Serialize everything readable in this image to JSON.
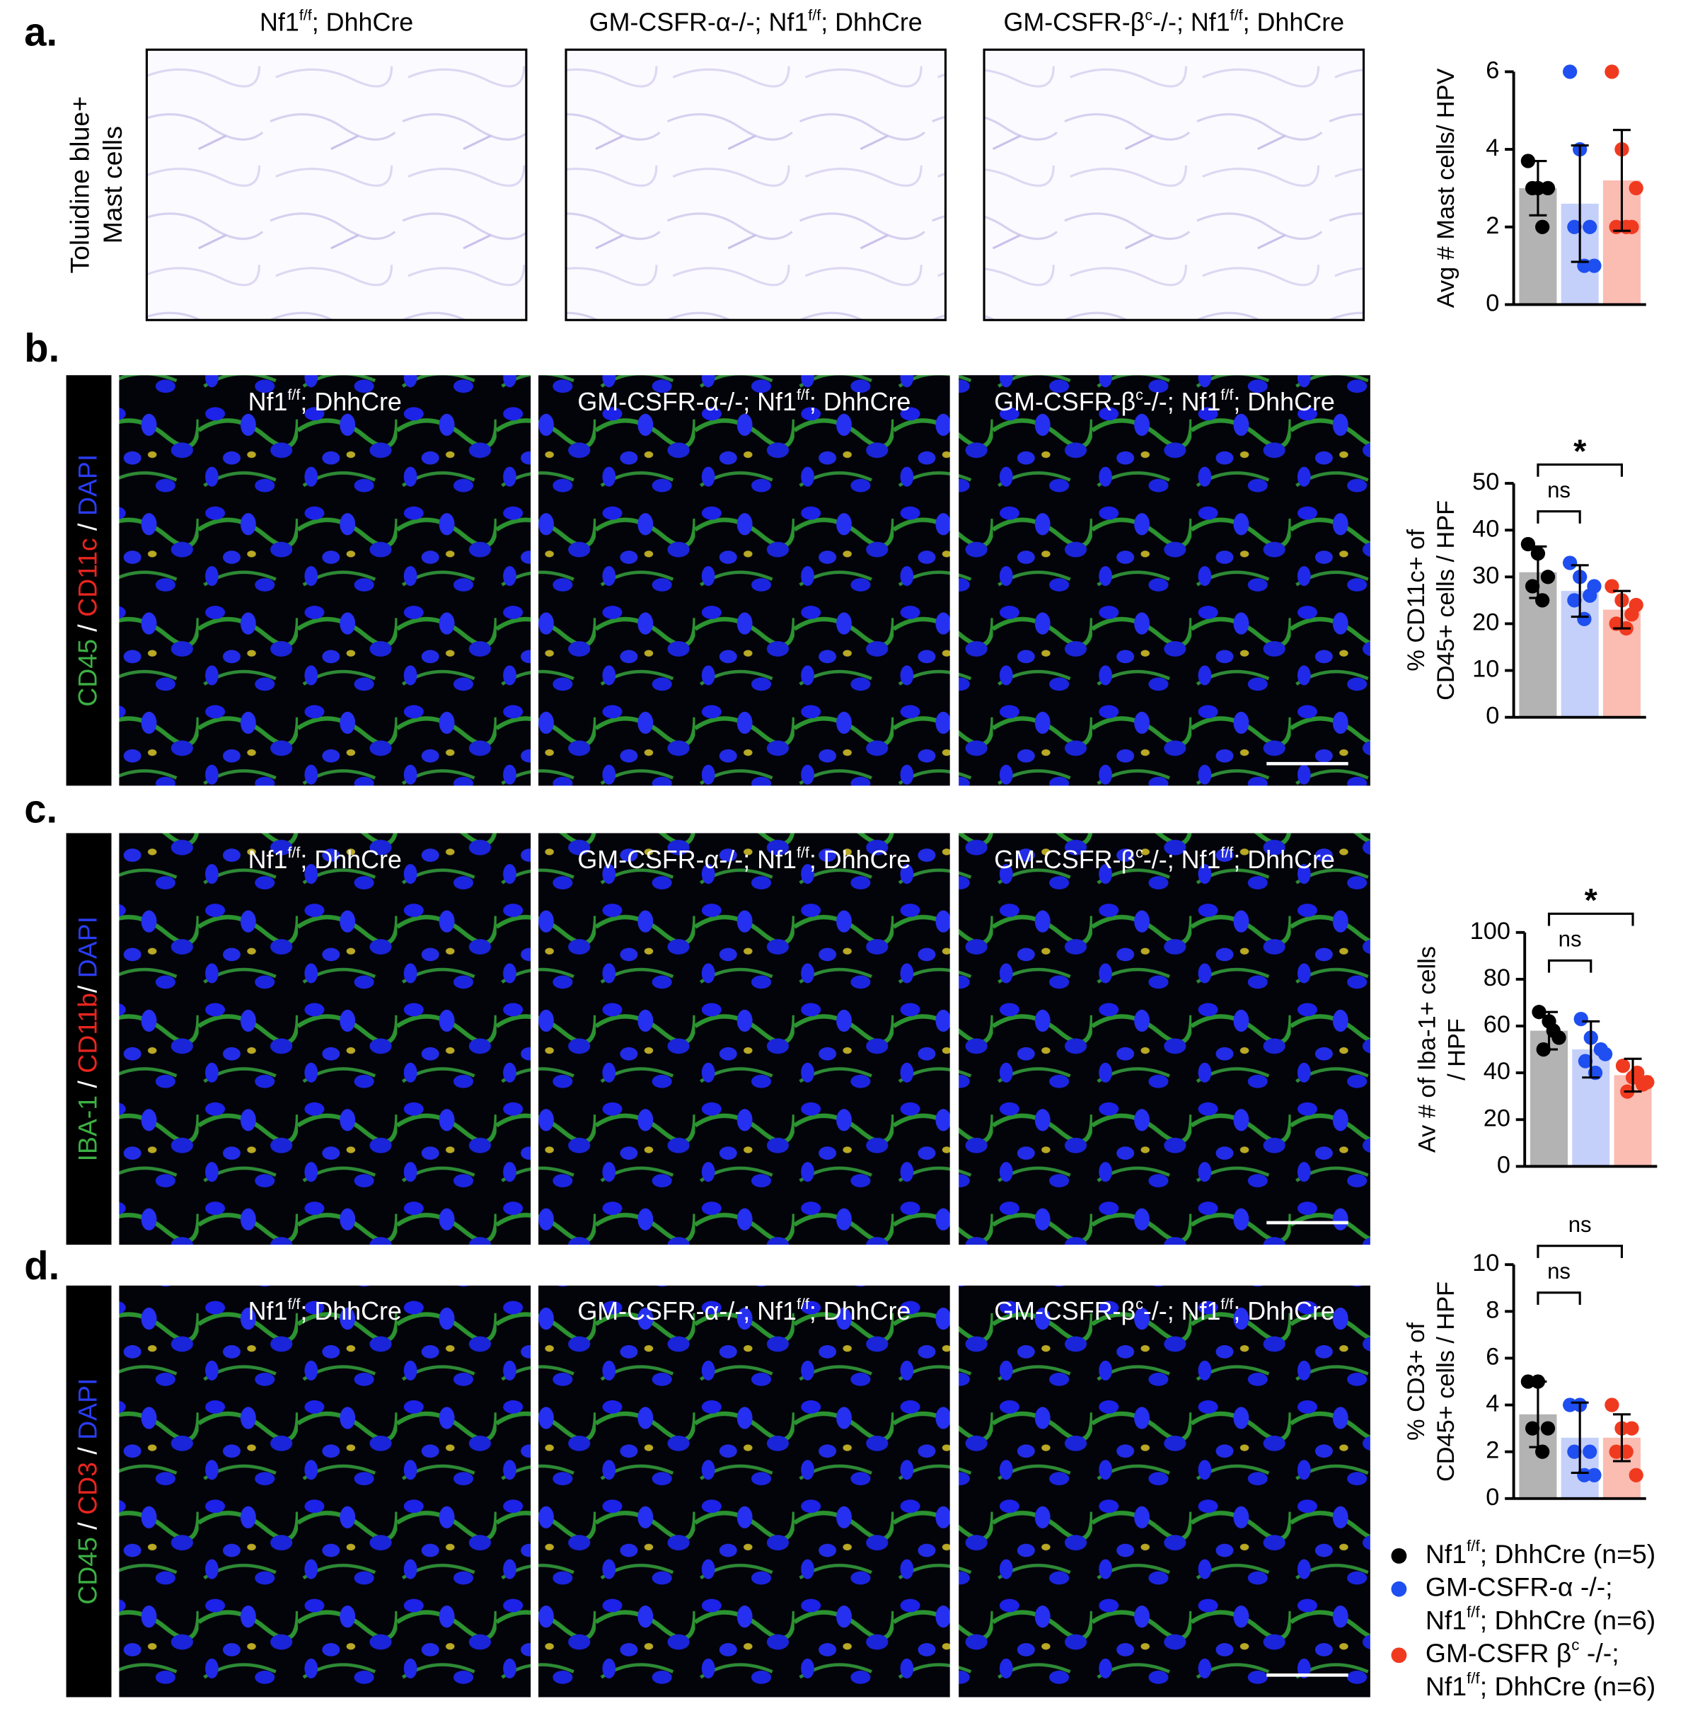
{
  "panels": [
    {
      "label": "a.",
      "style": "brightfield",
      "stain": [
        [
          {
            "text": "Toluidine blue+",
            "color": "#000000"
          }
        ],
        [
          {
            "text": "Mast cells",
            "color": "#000000"
          }
        ]
      ],
      "image_titles": [
        [
          "Nf1",
          "f/f",
          "; DhhCre"
        ],
        [
          "GM-CSFR-α-/-; Nf1",
          "f/f",
          "; DhhCre"
        ],
        [
          "GM-CSFR-β",
          "c",
          "-/-; Nf1",
          "f/f",
          "; DhhCre"
        ]
      ]
    },
    {
      "label": "b.",
      "style": "fluorescence",
      "stain": [
        [
          {
            "text": "CD45",
            "color": "#3cb043"
          },
          {
            "text": " / ",
            "color": "#ffffff"
          },
          {
            "text": "CD11c",
            "color": "#e8251f"
          },
          {
            "text": " / ",
            "color": "#ffffff"
          },
          {
            "text": "DAPI",
            "color": "#2a3cf0"
          }
        ]
      ],
      "image_titles": [
        [
          "Nf1",
          "f/f",
          "; DhhCre"
        ],
        [
          "GM-CSFR-α-/-; Nf1",
          "f/f",
          "; DhhCre"
        ],
        [
          "GM-CSFR-β",
          "c",
          "-/-; Nf1",
          "f/f",
          "; DhhCre"
        ]
      ]
    },
    {
      "label": "c.",
      "style": "fluorescence",
      "stain": [
        [
          {
            "text": "IBA-1",
            "color": "#3cb043"
          },
          {
            "text": " / ",
            "color": "#ffffff"
          },
          {
            "text": "CD11b",
            "color": "#e8251f"
          },
          {
            "text": "/ ",
            "color": "#ffffff"
          },
          {
            "text": "DAPI",
            "color": "#2a3cf0"
          }
        ]
      ],
      "image_titles": [
        [
          "Nf1",
          "f/f",
          "; DhhCre"
        ],
        [
          "GM-CSFR-α-/-; Nf1",
          "f/f",
          "; DhhCre"
        ],
        [
          "GM-CSFR-β",
          "c",
          "-/-; Nf1",
          "f/f",
          "; DhhCre"
        ]
      ]
    },
    {
      "label": "d.",
      "style": "fluorescence",
      "stain": [
        [
          {
            "text": "CD45",
            "color": "#3cb043"
          },
          {
            "text": " / ",
            "color": "#ffffff"
          },
          {
            "text": "CD3",
            "color": "#e8251f"
          },
          {
            "text": " / ",
            "color": "#ffffff"
          },
          {
            "text": "DAPI",
            "color": "#2a3cf0"
          }
        ]
      ],
      "image_titles": [
        [
          "Nf1",
          "f/f",
          "; DhhCre"
        ],
        [
          "GM-CSFR-α-/-; Nf1",
          "f/f",
          "; DhhCre"
        ],
        [
          "GM-CSFR-β",
          "c",
          "-/-; Nf1",
          "f/f",
          "; DhhCre"
        ]
      ]
    }
  ],
  "chart_data": [
    {
      "type": "bar",
      "ylabel": [
        "Avg # Mast cells/ HPV"
      ],
      "ylim": [
        0,
        6
      ],
      "yticks": [
        0,
        2,
        4,
        6
      ],
      "values": [
        3.0,
        2.6,
        3.2
      ],
      "errors": [
        0.7,
        1.5,
        1.3
      ],
      "colors": [
        "#b3b3b3",
        "#c4d0fa",
        "#fbbcb2"
      ],
      "point_colors": [
        "#000000",
        "#1f4ff0",
        "#f03a1f"
      ],
      "points": [
        [
          3.7,
          3,
          3,
          3,
          2
        ],
        [
          6,
          4,
          2,
          2,
          1,
          1
        ],
        [
          6,
          4,
          2,
          2,
          2,
          3
        ]
      ],
      "annotations": []
    },
    {
      "type": "bar",
      "ylabel": [
        "% CD11c+ of",
        "CD45+ cells / HPF"
      ],
      "ylim": [
        0,
        50
      ],
      "yticks": [
        0,
        10,
        20,
        30,
        40,
        50
      ],
      "values": [
        31,
        27,
        23
      ],
      "errors": [
        5.5,
        5.5,
        4
      ],
      "colors": [
        "#b3b3b3",
        "#c4d0fa",
        "#fbbcb2"
      ],
      "point_colors": [
        "#000000",
        "#1f4ff0",
        "#f03a1f"
      ],
      "points": [
        [
          37,
          35,
          30,
          28,
          25
        ],
        [
          33,
          30,
          26,
          25,
          21,
          28
        ],
        [
          28,
          25,
          22,
          20,
          19,
          24
        ]
      ],
      "annotations": [
        {
          "text": "ns",
          "between": [
            0,
            1
          ]
        },
        {
          "text": "*",
          "between": [
            0,
            2
          ]
        }
      ]
    },
    {
      "type": "bar",
      "ylabel": [
        "Av # of Iba-1+ cells",
        "/ HPF"
      ],
      "ylim": [
        0,
        100
      ],
      "yticks": [
        0,
        20,
        40,
        60,
        80,
        100
      ],
      "values": [
        58,
        50,
        39
      ],
      "errors": [
        8,
        12,
        7
      ],
      "colors": [
        "#b3b3b3",
        "#c4d0fa",
        "#fbbcb2"
      ],
      "point_colors": [
        "#000000",
        "#1f4ff0",
        "#f03a1f"
      ],
      "points": [
        [
          66,
          62,
          55,
          50,
          58
        ],
        [
          63,
          55,
          50,
          45,
          40,
          48
        ],
        [
          43,
          38,
          35,
          32,
          40,
          36
        ]
      ],
      "annotations": [
        {
          "text": "ns",
          "between": [
            0,
            1
          ]
        },
        {
          "text": "*",
          "between": [
            0,
            2
          ]
        }
      ]
    },
    {
      "type": "bar",
      "ylabel": [
        "% CD3+ of",
        "CD45+ cells / HPF"
      ],
      "ylim": [
        0,
        10
      ],
      "yticks": [
        0,
        2,
        4,
        6,
        8,
        10
      ],
      "values": [
        3.6,
        2.6,
        2.6
      ],
      "errors": [
        1.4,
        1.5,
        1.0
      ],
      "colors": [
        "#b3b3b3",
        "#c4d0fa",
        "#fbbcb2"
      ],
      "point_colors": [
        "#000000",
        "#1f4ff0",
        "#f03a1f"
      ],
      "points": [
        [
          5,
          5,
          3,
          3,
          2
        ],
        [
          4,
          4,
          2,
          2,
          1,
          1
        ],
        [
          4,
          3,
          3,
          2,
          2,
          1
        ]
      ],
      "annotations": [
        {
          "text": "ns",
          "between": [
            0,
            1
          ]
        },
        {
          "text": "ns",
          "between": [
            0,
            2
          ]
        }
      ]
    }
  ],
  "legend": [
    {
      "color": "#000000",
      "lines": [
        [
          "Nf1",
          "f/f",
          "; DhhCre (n=5)"
        ]
      ]
    },
    {
      "color": "#1f4ff0",
      "lines": [
        [
          "GM-CSFR-α -/-;"
        ],
        [
          "Nf1",
          "f/f",
          "; DhhCre (n=6)"
        ]
      ]
    },
    {
      "color": "#f03a1f",
      "lines": [
        [
          "GM-CSFR β",
          "c",
          " -/-;"
        ],
        [
          "Nf1",
          "f/f",
          "; DhhCre (n=6)"
        ]
      ]
    }
  ]
}
